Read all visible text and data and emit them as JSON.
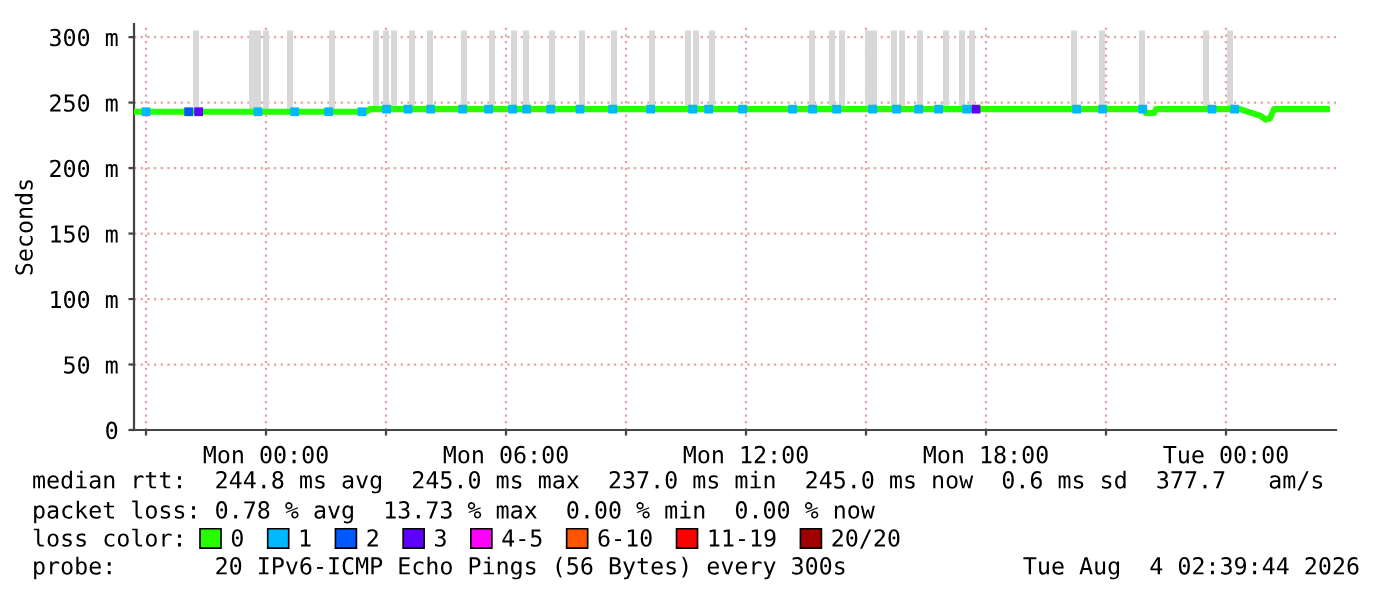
{
  "chart_data": {
    "type": "line",
    "ylabel": "Seconds",
    "series": [
      {
        "name": "0",
        "color": "#26ff00",
        "x": [
          "2026-08-02T20:42",
          "2026-08-03T02:30",
          "2026-08-03T02:36",
          "2026-08-03T21:57",
          "2026-08-03T22:00",
          "2026-08-03T22:12",
          "2026-08-03T22:15",
          "2026-08-04T00:21",
          "2026-08-04T00:51",
          "2026-08-04T01:00",
          "2026-08-04T01:06",
          "2026-08-04T01:12",
          "2026-08-04T02:36"
        ],
        "values": [
          243,
          243,
          245,
          245,
          242,
          242,
          245,
          245,
          240,
          237,
          238,
          245,
          245
        ]
      },
      {
        "name": "1",
        "color": "#00b8ff",
        "type": "scatter",
        "marker": "square",
        "x": [
          "2026-08-02T21:00",
          "2026-08-02T22:12",
          "2026-08-02T23:48",
          "2026-08-03T00:43",
          "2026-08-03T01:34",
          "2026-08-03T02:24",
          "2026-08-03T03:01",
          "2026-08-03T03:33",
          "2026-08-03T04:07",
          "2026-08-03T04:55",
          "2026-08-03T05:34",
          "2026-08-03T06:10",
          "2026-08-03T06:31",
          "2026-08-03T07:07",
          "2026-08-03T07:51",
          "2026-08-03T08:40",
          "2026-08-03T09:37",
          "2026-08-03T10:40",
          "2026-08-03T11:04",
          "2026-08-03T11:55",
          "2026-08-03T13:10",
          "2026-08-03T13:40",
          "2026-08-03T14:16",
          "2026-08-03T15:10",
          "2026-08-03T15:46",
          "2026-08-03T16:19",
          "2026-08-03T16:49",
          "2026-08-03T17:31",
          "2026-08-03T20:16",
          "2026-08-03T20:55",
          "2026-08-03T21:55",
          "2026-08-03T23:39",
          "2026-08-04T00:13"
        ],
        "values": [
          243,
          null,
          243,
          243,
          243,
          243,
          245,
          245,
          245,
          245,
          245,
          245,
          245,
          245,
          245,
          245,
          245,
          245,
          245,
          245,
          245,
          245,
          245,
          245,
          245,
          245,
          245,
          245,
          245,
          245,
          245,
          245,
          245
        ]
      },
      {
        "name": "2",
        "color": "#0059ff",
        "type": "scatter",
        "marker": "square",
        "x": [
          "2026-08-02T22:04"
        ],
        "values": [
          243
        ]
      },
      {
        "name": "3",
        "color": "#5e00ff",
        "type": "scatter",
        "marker": "square",
        "x": [
          "2026-08-02T22:19",
          "2026-08-03T17:45"
        ],
        "values": [
          243,
          245
        ]
      },
      {
        "name": "4-5",
        "color": "#ff00fe",
        "type": "scatter"
      },
      {
        "name": "6-10",
        "color": "#ff5500",
        "type": "scatter"
      },
      {
        "name": "11-19",
        "color": "#ff0000",
        "type": "scatter"
      },
      {
        "name": "20/20",
        "color": "#a10000",
        "type": "scatter"
      },
      {
        "type": "bar",
        "color": "#d8d8d8",
        "x": [
          "2026-08-02T22:15",
          "2026-08-02T23:39",
          "2026-08-02T23:48",
          "2026-08-03T00:00",
          "2026-08-03T00:36",
          "2026-08-03T01:39",
          "2026-08-03T02:45",
          "2026-08-03T03:00",
          "2026-08-03T03:12",
          "2026-08-03T03:39",
          "2026-08-03T04:06",
          "2026-08-03T04:57",
          "2026-08-03T05:39",
          "2026-08-03T06:12",
          "2026-08-03T06:30",
          "2026-08-03T07:09",
          "2026-08-03T07:54",
          "2026-08-03T08:42",
          "2026-08-03T09:39",
          "2026-08-03T10:33",
          "2026-08-03T10:45",
          "2026-08-03T11:09",
          "2026-08-03T13:39",
          "2026-08-03T14:09",
          "2026-08-03T14:24",
          "2026-08-03T15:03",
          "2026-08-03T15:12",
          "2026-08-03T15:42",
          "2026-08-03T15:54",
          "2026-08-03T16:21",
          "2026-08-03T17:00",
          "2026-08-03T17:24",
          "2026-08-03T17:39",
          "2026-08-03T20:12",
          "2026-08-03T20:54",
          "2026-08-03T21:54",
          "2026-08-03T23:30",
          "2026-08-04T00:06"
        ],
        "base": [
          245,
          245,
          245,
          245,
          245,
          245,
          245,
          245,
          245,
          245,
          245,
          245,
          245,
          245,
          245,
          245,
          245,
          245,
          245,
          245,
          245,
          245,
          245,
          245,
          245,
          245,
          245,
          245,
          245,
          245,
          245,
          245,
          245,
          245,
          245,
          245,
          245,
          245
        ],
        "values": [
          60,
          60,
          60,
          60,
          60,
          60,
          60,
          60,
          60,
          60,
          60,
          60,
          60,
          60,
          60,
          60,
          60,
          60,
          60,
          60,
          60,
          60,
          60,
          60,
          60,
          60,
          60,
          60,
          60,
          60,
          60,
          60,
          60,
          60,
          60,
          60,
          60,
          60
        ]
      }
    ],
    "xlim": [
      "2026-08-02T20:42",
      "2026-08-04T02:45"
    ],
    "xticks": [
      {
        "value": "2026-08-02T21:00",
        "label": null
      },
      {
        "value": "2026-08-03T00:00",
        "label": "Mon 00:00"
      },
      {
        "value": "2026-08-03T03:00",
        "label": null
      },
      {
        "value": "2026-08-03T06:00",
        "label": "Mon 06:00"
      },
      {
        "value": "2026-08-03T09:00",
        "label": null
      },
      {
        "value": "2026-08-03T12:00",
        "label": "Mon 12:00"
      },
      {
        "value": "2026-08-03T15:00",
        "label": null
      },
      {
        "value": "2026-08-03T18:00",
        "label": "Mon 18:00"
      },
      {
        "value": "2026-08-03T21:00",
        "label": null
      },
      {
        "value": "2026-08-04T00:00",
        "label": "Tue 00:00"
      }
    ],
    "ylim": [
      0,
      310
    ],
    "yticks": [
      0,
      {
        "value": 50,
        "label": "50 m"
      },
      {
        "value": 100,
        "label": "100 m"
      },
      {
        "value": 150,
        "label": "150 m"
      },
      {
        "value": 200,
        "label": "200 m"
      },
      {
        "value": 250,
        "label": "250 m"
      },
      {
        "value": 300,
        "label": "300 m"
      }
    ],
    "grid": true,
    "legend": "bottom",
    "legend_title": "loss color:",
    "annotations": [
      "median rtt:  244.8 ms avg  245.0 ms max  237.0 ms min  245.0 ms now  0.6 ms sd  377.7   am/s",
      "packet loss: 0.78 % avg  13.73 % max  0.00 % min  0.00 % now",
      "probe:       20 IPv6-ICMP Echo Pings (56 Bytes) every 300s",
      "Tue Aug  4 02:39:44 2026"
    ]
  }
}
